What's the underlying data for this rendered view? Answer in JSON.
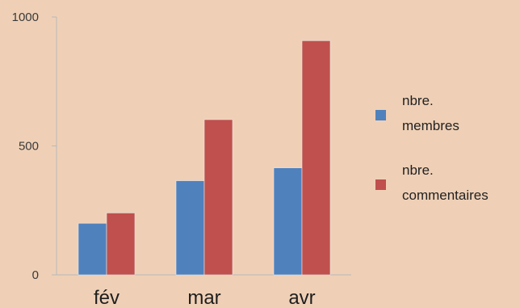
{
  "chart_data": {
    "type": "bar",
    "categories": [
      "fév",
      "mar",
      "avr"
    ],
    "series": [
      {
        "name": [
          "nbre.",
          "membres"
        ],
        "values": [
          200,
          365,
          415
        ],
        "color": "#4f81bd"
      },
      {
        "name": [
          "nbre.",
          "commentaires"
        ],
        "values": [
          240,
          602,
          908
        ],
        "color": "#c0504d"
      }
    ],
    "ylim": [
      0,
      1000
    ],
    "yticks": [
      0,
      500,
      1000
    ],
    "legend": "right",
    "grid": false,
    "title": "",
    "xlabel": "",
    "ylabel": ""
  }
}
